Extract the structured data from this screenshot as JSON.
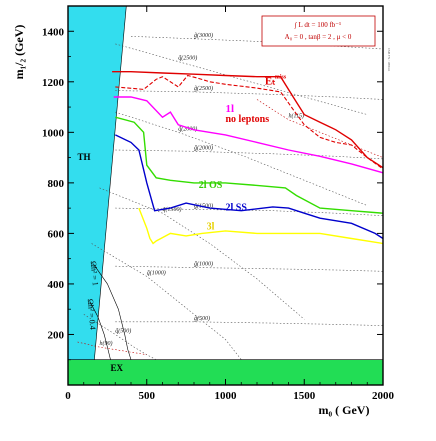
{
  "chart_data": {
    "type": "line",
    "xlabel": "m₀ ( GeV)",
    "ylabel": "m₁/₂ (GeV)",
    "xlim": [
      0,
      2000
    ],
    "ylim": [
      0,
      1500
    ],
    "x_ticks": [
      0,
      500,
      1000,
      1500,
      2000
    ],
    "y_ticks": [
      200,
      400,
      600,
      800,
      1000,
      1200,
      1400
    ],
    "grid": false,
    "legend_lines": [
      "∫ L dt = 100 fb⁻¹",
      "A₀ = 0 ,  tanβ = 2 ,  μ < 0"
    ],
    "side_note": "CMS TN / 1999-61",
    "regions": [
      {
        "name": "TH",
        "label": "TH",
        "color": "#33ddee",
        "polygon": [
          [
            0,
            50
          ],
          [
            0,
            1500
          ],
          [
            370,
            1500
          ],
          [
            160,
            50
          ]
        ]
      },
      {
        "name": "EX",
        "label": "EX",
        "color": "#22dd55",
        "polygon": [
          [
            0,
            0
          ],
          [
            2000,
            0
          ],
          [
            2000,
            100
          ],
          [
            0,
            100
          ]
        ]
      }
    ],
    "series": [
      {
        "name": "ET miss",
        "label": "Eₜ",
        "label_sup": "miss",
        "color": "#e00000",
        "dashed": false,
        "x": [
          280,
          400,
          600,
          800,
          1000,
          1200,
          1350,
          1430,
          1500,
          1600,
          1700,
          1800,
          1900,
          2000
        ],
        "y": [
          1240,
          1240,
          1235,
          1230,
          1225,
          1220,
          1220,
          1140,
          1070,
          1040,
          1010,
          970,
          900,
          860
        ]
      },
      {
        "name": "ET miss (dashed)",
        "color": "#e00000",
        "dashed": true,
        "x": [
          300,
          480,
          560,
          600,
          700,
          760,
          820,
          900,
          1000,
          1200,
          1350,
          1430,
          1500,
          1600,
          1700,
          1800,
          1900,
          2000
        ],
        "y": [
          1180,
          1170,
          1210,
          1220,
          1180,
          1225,
          1215,
          1200,
          1190,
          1175,
          1160,
          1090,
          1030,
          980,
          960,
          950,
          900,
          855
        ]
      },
      {
        "name": "1l",
        "label": "1l",
        "color": "#ff00ff",
        "dashed": false,
        "x": [
          290,
          400,
          500,
          600,
          650,
          700,
          800,
          1000,
          1200,
          1400,
          1600,
          1800,
          2000
        ],
        "y": [
          1140,
          1140,
          1125,
          1060,
          1080,
          1030,
          1010,
          990,
          960,
          930,
          905,
          875,
          840
        ]
      },
      {
        "name": "2l OS",
        "label": "2l OS",
        "color": "#33dd00",
        "dashed": false,
        "x": [
          300,
          420,
          480,
          500,
          560,
          650,
          800,
          1000,
          1200,
          1380,
          1450,
          1600,
          1800,
          2000
        ],
        "y": [
          1060,
          1040,
          1000,
          870,
          820,
          810,
          800,
          800,
          790,
          780,
          750,
          700,
          690,
          680
        ]
      },
      {
        "name": "2l SS",
        "label": "2l SS",
        "color": "#0000cc",
        "dashed": false,
        "x": [
          300,
          400,
          450,
          500,
          550,
          650,
          750,
          900,
          1100,
          1300,
          1400,
          1500,
          1600,
          1800,
          1950,
          2000
        ],
        "y": [
          990,
          960,
          930,
          800,
          690,
          700,
          720,
          700,
          690,
          705,
          700,
          680,
          660,
          640,
          600,
          580
        ]
      },
      {
        "name": "3l",
        "label": "3l",
        "color": "#ffff00",
        "dashed": false,
        "x": [
          450,
          500,
          520,
          540,
          560,
          650,
          750,
          850,
          1000,
          1200,
          1400,
          1600,
          1800,
          2000
        ],
        "y": [
          700,
          620,
          580,
          560,
          570,
          600,
          590,
          600,
          610,
          600,
          600,
          600,
          580,
          560
        ]
      }
    ],
    "dotted_contours": [
      {
        "label": "g̃(3000)",
        "x": [
          400,
          800,
          1200,
          1600,
          2000
        ],
        "y": [
          1380,
          1370,
          1360,
          1345,
          1330
        ]
      },
      {
        "label": "q̃(2500)",
        "x": [
          300,
          700,
          1100,
          1500,
          1900
        ],
        "y": [
          1350,
          1280,
          1210,
          1140,
          1070
        ]
      },
      {
        "label": "g̃(2500)",
        "x": [
          300,
          800,
          1300,
          1700,
          2000
        ],
        "y": [
          1165,
          1160,
          1150,
          1140,
          1130
        ]
      },
      {
        "label": "q̃(2000)",
        "x": [
          300,
          700,
          1100,
          1500,
          1900
        ],
        "y": [
          1080,
          1000,
          910,
          810,
          710
        ]
      },
      {
        "label": "g̃(2000)",
        "x": [
          300,
          800,
          1300,
          1700,
          2000
        ],
        "y": [
          930,
          925,
          915,
          905,
          895
        ]
      },
      {
        "label": "g̃(1500)",
        "x": [
          300,
          800,
          1300,
          1700,
          2000
        ],
        "y": [
          700,
          695,
          690,
          680,
          670
        ]
      },
      {
        "label": "q̃(1500)",
        "x": [
          200,
          600,
          900,
          1200,
          1500
        ],
        "y": [
          780,
          680,
          560,
          420,
          260
        ]
      },
      {
        "label": "g̃(1000)",
        "x": [
          300,
          800,
          1300,
          1700,
          2000
        ],
        "y": [
          470,
          465,
          460,
          455,
          450
        ]
      },
      {
        "label": "q̃(1000)",
        "x": [
          150,
          500,
          800,
          1000,
          1100
        ],
        "y": [
          560,
          430,
          280,
          180,
          100
        ]
      },
      {
        "label": "g̃(500)",
        "x": [
          300,
          800,
          1300,
          1700,
          2000
        ],
        "y": [
          250,
          250,
          245,
          240,
          235
        ]
      },
      {
        "label": "q̃(500)",
        "x": [
          100,
          300,
          420,
          500,
          560
        ],
        "y": [
          280,
          200,
          150,
          120,
          100
        ]
      },
      {
        "label": "h(115)",
        "x": [
          1200,
          1400,
          1600,
          1800,
          2000
        ],
        "y": [
          1130,
          1050,
          1000,
          950,
          900
        ],
        "color": "#c00000"
      },
      {
        "label": "h(90)",
        "x": [
          60,
          200,
          300,
          400,
          500
        ],
        "y": [
          170,
          150,
          140,
          130,
          120
        ],
        "color": "#c00000"
      }
    ],
    "thin_contours": [
      {
        "label": "Ωh² = 1",
        "x": [
          160,
          250,
          320,
          360,
          380,
          400
        ],
        "y": [
          480,
          400,
          300,
          200,
          140,
          100
        ]
      },
      {
        "label": "Ωh² = 0.4",
        "x": [
          140,
          190,
          230,
          250,
          270
        ],
        "y": [
          330,
          270,
          200,
          150,
          100
        ]
      }
    ],
    "annotations": [
      {
        "text": "TH",
        "x": 60,
        "y": 890
      },
      {
        "text": "EX",
        "x": 270,
        "y": 55
      },
      {
        "text": "no leptons",
        "x": 1000,
        "y": 1040
      },
      {
        "text": "2l OS",
        "x": 830,
        "y": 780
      },
      {
        "text": "2l SS",
        "x": 1000,
        "y": 690
      },
      {
        "text": "3l",
        "x": 880,
        "y": 615
      },
      {
        "text": "1l",
        "x": 1000,
        "y": 1080
      },
      {
        "text": "Eₜ",
        "x": 1250,
        "y": 1190
      },
      {
        "text": "Ωh² = 1",
        "x": 145,
        "y": 490
      },
      {
        "text": "Ωh² = 0.4",
        "x": 125,
        "y": 340
      }
    ]
  }
}
